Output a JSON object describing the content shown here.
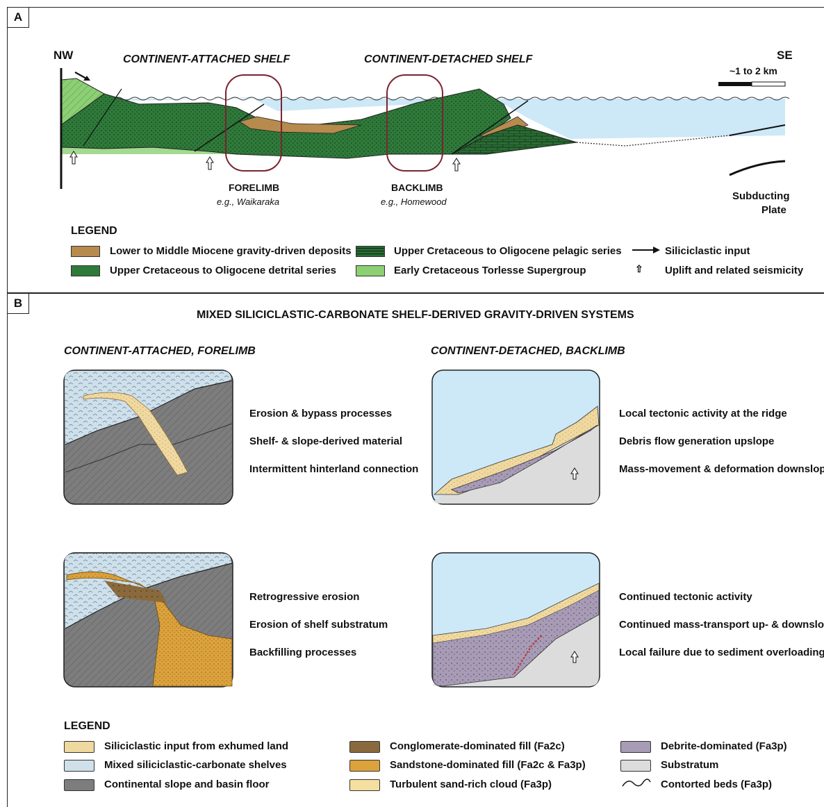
{
  "panelA": {
    "tag": "A",
    "nw": "NW",
    "se": "SE",
    "attached_shelf": "CONTINENT-ATTACHED SHELF",
    "detached_shelf": "CONTINENT-DETACHED SHELF",
    "scale": "~1 to 2 km",
    "forelimb": "FORELIMB",
    "forelimb_eg": "e.g., Waikaraka",
    "backlimb": "BACKLIMB",
    "backlimb_eg": "e.g., Homewood",
    "subducting_1": "Subducting",
    "subducting_2": "Plate",
    "legend_title": "LEGEND",
    "legend": [
      "Lower to Middle Miocene gravity-driven deposits",
      "Upper Cretaceous to Oligocene detrital series",
      "Upper Cretaceous to Oligocene pelagic series",
      "Early Cretaceous Torlesse Supergroup",
      "Siliciclastic input",
      "Uplift and related seismicity"
    ]
  },
  "panelB": {
    "tag": "B",
    "title": "MIXED SILICICLASTIC-CARBONATE SHELF-DERIVED GRAVITY-DRIVEN SYSTEMS",
    "left_heading": "CONTINENT-ATTACHED, FORELIMB",
    "right_heading": "CONTINENT-DETACHED, BACKLIMB",
    "left_top": [
      "Erosion & bypass processes",
      "Shelf- & slope-derived material",
      "Intermittent hinterland connection"
    ],
    "left_bottom": [
      "Retrogressive erosion",
      "Erosion of shelf substratum",
      "Backfilling processes"
    ],
    "right_top": [
      "Local tectonic activity at the ridge",
      "Debris flow generation upslope",
      "Mass-movement & deformation downslope"
    ],
    "right_bottom": [
      "Continued tectonic activity",
      "Continued mass-transport up- & downslope",
      "Local failure due to sediment overloading"
    ],
    "legend_title": "LEGEND",
    "legend": [
      "Siliciclastic input from exhumed land",
      "Mixed siliciclastic-carbonate shelves",
      "Continental slope and basin floor",
      "Conglomerate-dominated fill (Fa2c)",
      "Sandstone-dominated fill (Fa2c & Fa3p)",
      "Turbulent sand-rich cloud (Fa3p)",
      "Debrite-dominated (Fa3p)",
      "Substratum",
      "Contorted beds (Fa3p)"
    ]
  },
  "colors": {
    "detrital_green": "#2f7a3a",
    "pelagic_green": "#2a6b34",
    "torlesse_green": "#8ccf74",
    "miocene_brown": "#b78a4e",
    "sea_blue": "#cde8f6",
    "limb_outline": "#7a2430",
    "siliciclastic_tan": "#f0d9a0",
    "slope_gray": "#7d7d7d",
    "conglomerate": "#8a6a3c",
    "sandstone": "#dca23c",
    "sand_cloud": "#f4dea0",
    "debrite": "#a79bb6",
    "substratum": "#dcdcdc"
  }
}
